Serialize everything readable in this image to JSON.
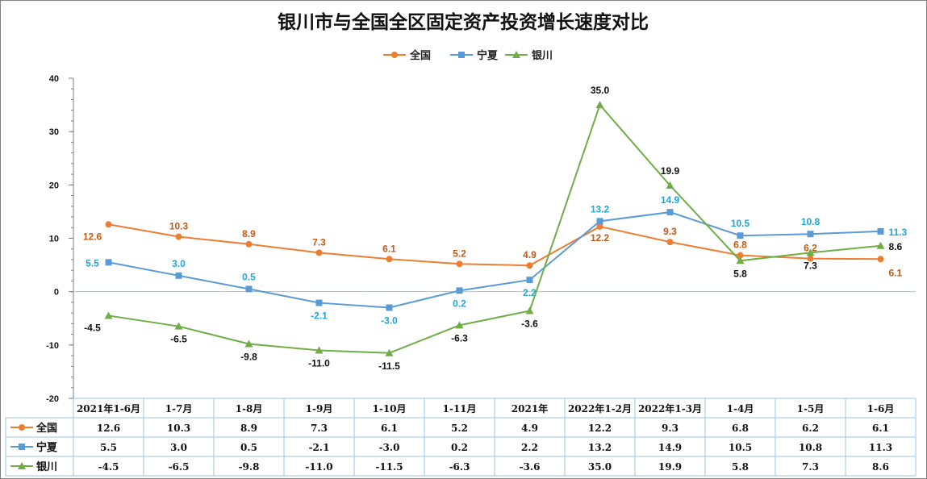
{
  "chart_data": {
    "type": "line",
    "title": "银川市与全国全区固定资产投资增长速度对比",
    "categories": [
      "2021年1-6月",
      "1-7月",
      "1-8月",
      "1-9月",
      "1-10月",
      "1-11月",
      "2021年",
      "2022年1-2月",
      "2022年1-3月",
      "1-4月",
      "1-5月",
      "1-6月"
    ],
    "series": [
      {
        "name": "全国",
        "color": "#ED7D31",
        "marker": "circle",
        "values": [
          12.6,
          10.3,
          8.9,
          7.3,
          6.1,
          5.2,
          4.9,
          12.2,
          9.3,
          6.8,
          6.2,
          6.1
        ]
      },
      {
        "name": "宁夏",
        "color": "#5B9BD5",
        "marker": "square",
        "values": [
          5.5,
          3.0,
          0.5,
          -2.1,
          -3.0,
          0.2,
          2.2,
          13.2,
          14.9,
          10.5,
          10.8,
          11.3
        ]
      },
      {
        "name": "银川",
        "color": "#70AD47",
        "marker": "triangle",
        "values": [
          -4.5,
          -6.5,
          -9.8,
          -11.0,
          -11.5,
          -6.3,
          -3.6,
          35.0,
          19.9,
          5.8,
          7.3,
          8.6
        ]
      }
    ],
    "ylim": [
      -20,
      40
    ],
    "yticks": [
      -20,
      -10,
      0,
      10,
      20,
      30,
      40
    ],
    "label_colors": [
      "#C55A11",
      "#1EA7D8",
      "#111111"
    ],
    "grid": false,
    "legend": "top-center",
    "data_table": true
  }
}
